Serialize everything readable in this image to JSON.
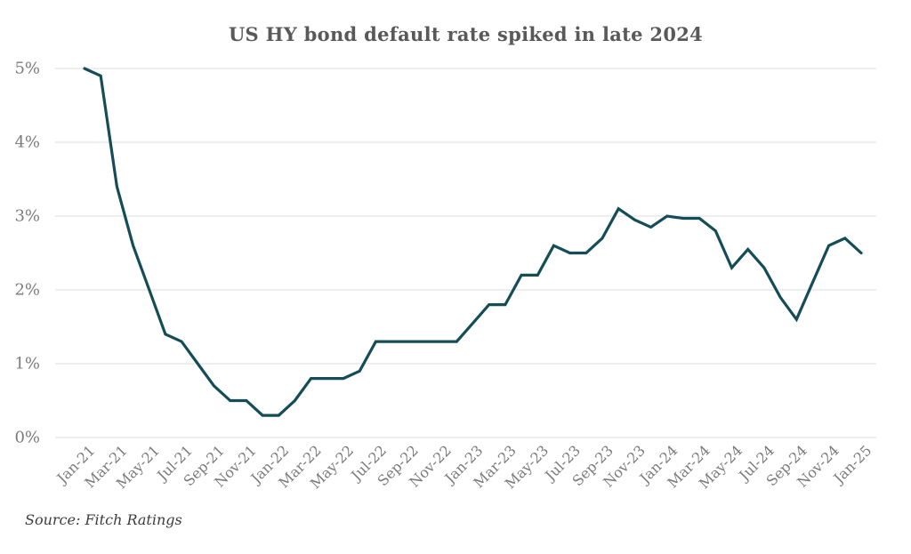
{
  "chart_data": {
    "type": "line",
    "title": "US HY bond default rate spiked in late 2024",
    "source": "Source: Fitch Ratings",
    "xlabel": "",
    "ylabel": "",
    "ylim": [
      0,
      5
    ],
    "y_ticks": [
      "0%",
      "1%",
      "2%",
      "3%",
      "4%",
      "5%"
    ],
    "grid": "horizontal",
    "legend": "none",
    "line_color": "#154d57",
    "grid_color": "#e4e4e4",
    "x": [
      "Jan-21",
      "Feb-21",
      "Mar-21",
      "Apr-21",
      "May-21",
      "Jun-21",
      "Jul-21",
      "Aug-21",
      "Sep-21",
      "Oct-21",
      "Nov-21",
      "Dec-21",
      "Jan-22",
      "Feb-22",
      "Mar-22",
      "Apr-22",
      "May-22",
      "Jun-22",
      "Jul-22",
      "Aug-22",
      "Sep-22",
      "Oct-22",
      "Nov-22",
      "Dec-22",
      "Jan-23",
      "Feb-23",
      "Mar-23",
      "Apr-23",
      "May-23",
      "Jun-23",
      "Jul-23",
      "Aug-23",
      "Sep-23",
      "Oct-23",
      "Nov-23",
      "Dec-23",
      "Jan-24",
      "Feb-24",
      "Mar-24",
      "Apr-24",
      "May-24",
      "Jun-24",
      "Jul-24",
      "Aug-24",
      "Sep-24",
      "Oct-24",
      "Nov-24",
      "Dec-24",
      "Jan-25"
    ],
    "x_tick_labels": [
      "Jan-21",
      "Mar-21",
      "May-21",
      "Jul-21",
      "Sep-21",
      "Nov-21",
      "Jan-22",
      "Mar-22",
      "May-22",
      "Jul-22",
      "Sep-22",
      "Nov-22",
      "Jan-23",
      "Mar-23",
      "May-23",
      "Jul-23",
      "Sep-23",
      "Nov-23",
      "Jan-24",
      "Mar-24",
      "May-24",
      "Jul-24",
      "Sep-24",
      "Nov-24",
      "Jan-25"
    ],
    "x_tick_every": 2,
    "series": [
      {
        "name": "US HY bond default rate",
        "values": [
          5.0,
          4.9,
          3.4,
          2.6,
          2.0,
          1.4,
          1.3,
          1.0,
          0.7,
          0.5,
          0.5,
          0.3,
          0.3,
          0.5,
          0.8,
          0.8,
          0.8,
          0.9,
          1.3,
          1.3,
          1.3,
          1.3,
          1.3,
          1.3,
          1.55,
          1.8,
          1.8,
          2.2,
          2.2,
          2.6,
          2.5,
          2.5,
          2.7,
          3.1,
          2.95,
          2.85,
          3.0,
          2.97,
          2.97,
          2.8,
          2.3,
          2.55,
          2.3,
          1.9,
          1.6,
          2.1,
          2.6,
          2.7,
          2.5
        ]
      }
    ]
  }
}
